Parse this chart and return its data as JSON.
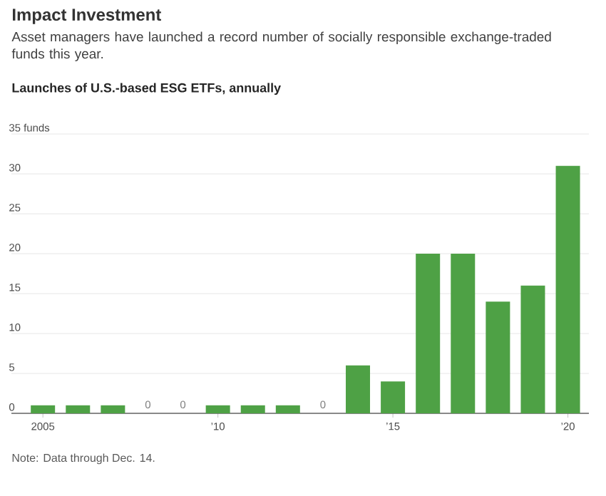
{
  "chart_data": {
    "type": "bar",
    "title": "Impact Investment",
    "subtitle": "Asset managers have launched a record number of socially responsible exchange-traded funds this year.",
    "ylabel": "Launches of U.S.-based ESG ETFs, annually",
    "annotations": [
      "Note: Data through Dec. 14."
    ],
    "categories": [
      "2005",
      null,
      null,
      null,
      null,
      "’10",
      null,
      null,
      null,
      null,
      "’15",
      null,
      null,
      null,
      null,
      "’20"
    ],
    "values": [
      1,
      1,
      1,
      0,
      0,
      1,
      1,
      1,
      0,
      6,
      4,
      20,
      20,
      14,
      16,
      31
    ],
    "value_labels": [
      null,
      null,
      null,
      "0",
      "0",
      null,
      null,
      null,
      "0",
      null,
      null,
      null,
      null,
      null,
      null,
      null
    ],
    "color": "#4ea145",
    "ylim": [
      0,
      35
    ],
    "yticks": [
      0,
      5,
      10,
      15,
      20,
      25,
      30,
      {
        "value": 35,
        "label": "35 funds"
      }
    ],
    "grid": "y"
  }
}
